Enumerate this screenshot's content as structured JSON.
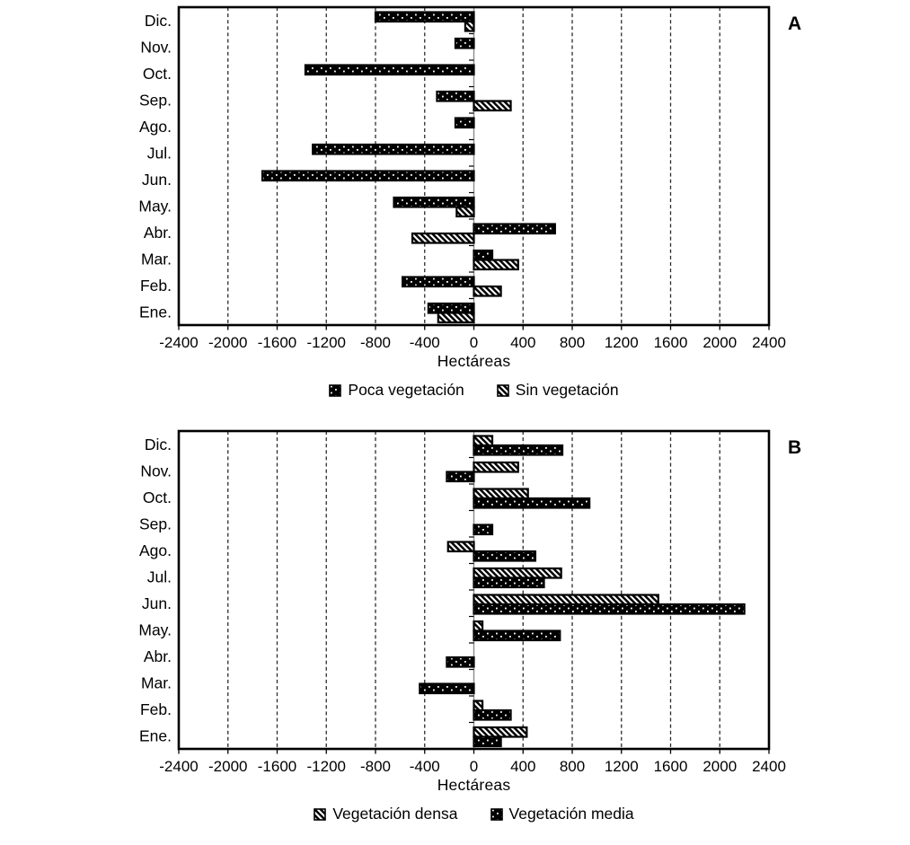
{
  "colors": {
    "bar_fill": "#000000",
    "bar_stroke": "#000000",
    "hatch_background": "#ffffff",
    "grid": "#2b2b2b",
    "zero_line": "#8c8c8c",
    "text": "#000000",
    "background": "#ffffff"
  },
  "chart_data": [
    {
      "type": "bar",
      "orientation": "horizontal",
      "panel_label": "A",
      "title": "",
      "xlabel": "Hectáreas",
      "xlim": [
        -2400,
        2400
      ],
      "xtick_step": 400,
      "xticks": [
        -2400,
        -2000,
        -1600,
        -1200,
        -800,
        -400,
        0,
        400,
        800,
        1200,
        1600,
        2000,
        2400
      ],
      "xtick_labels": [
        "-2400",
        "-2000",
        "-1600",
        "-1200",
        "-800",
        "-400",
        "0",
        "400",
        "800",
        "1200",
        "1600",
        "2000",
        "2400"
      ],
      "grid": "vertical-dashed",
      "legend_position": "bottom",
      "categories": [
        "Dic.",
        "Nov.",
        "Oct.",
        "Sep.",
        "Ago.",
        "Jul.",
        "Jun.",
        "May.",
        "Abr.",
        "Mar.",
        "Feb.",
        "Ene."
      ],
      "series": [
        {
          "name": "Poca vegetación",
          "pattern": "dots",
          "values": [
            -800,
            -150,
            -1370,
            -300,
            -150,
            -1310,
            -1720,
            -650,
            660,
            150,
            -580,
            -370
          ]
        },
        {
          "name": "Sin vegetación",
          "pattern": "hatch",
          "values": [
            -70,
            0,
            0,
            300,
            0,
            0,
            0,
            -140,
            -500,
            360,
            220,
            -290
          ]
        }
      ]
    },
    {
      "type": "bar",
      "orientation": "horizontal",
      "panel_label": "B",
      "title": "",
      "xlabel": "Hectáreas",
      "xlim": [
        -2400,
        2400
      ],
      "xtick_step": 400,
      "xticks": [
        -2400,
        -2000,
        -1600,
        -1200,
        -800,
        -400,
        0,
        400,
        800,
        1200,
        1600,
        2000,
        2400
      ],
      "xtick_labels": [
        "-2400",
        "-2000",
        "-1600",
        "-1200",
        "-800",
        "-400",
        "0",
        "400",
        "800",
        "1200",
        "1600",
        "2000",
        "2400"
      ],
      "grid": "vertical-dashed",
      "legend_position": "bottom",
      "categories": [
        "Dic.",
        "Nov.",
        "Oct.",
        "Sep.",
        "Ago.",
        "Jul.",
        "Jun.",
        "May.",
        "Abr.",
        "Mar.",
        "Feb.",
        "Ene."
      ],
      "series": [
        {
          "name": "Vegetación densa",
          "pattern": "hatch",
          "values": [
            150,
            360,
            440,
            0,
            -210,
            710,
            1500,
            70,
            0,
            0,
            70,
            430
          ]
        },
        {
          "name": "Vegetación media",
          "pattern": "dots",
          "values": [
            720,
            -220,
            940,
            150,
            500,
            570,
            2200,
            700,
            -220,
            -440,
            300,
            220
          ]
        }
      ]
    }
  ]
}
